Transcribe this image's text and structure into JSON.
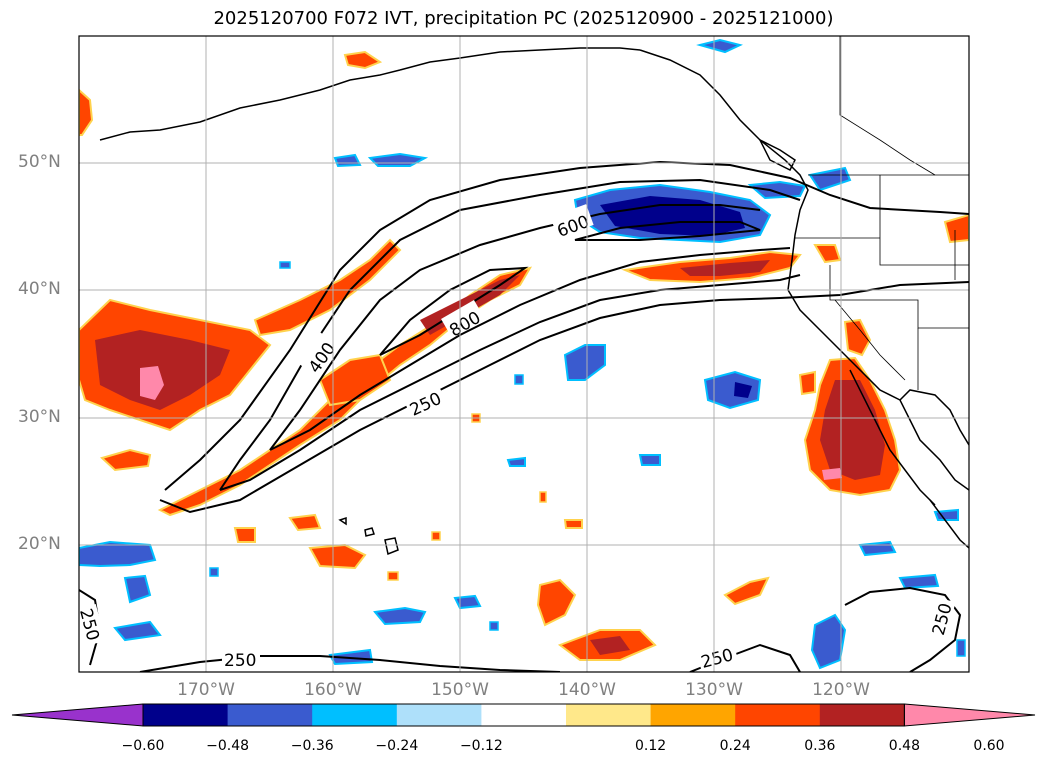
{
  "title": "2025120700 F072 IVT, precipitation PC (2025120900 - 2025121000)",
  "lat_labels": [
    "50°N",
    "40°N",
    "30°N",
    "20°N"
  ],
  "lon_labels": [
    "170°W",
    "160°W",
    "150°W",
    "140°W",
    "130°W",
    "120°W"
  ],
  "contour_labels": [
    "600",
    "800",
    "400",
    "250",
    "250",
    "250",
    "250",
    "250"
  ],
  "colorbar": {
    "tick_labels": [
      "−0.60",
      "−0.48",
      "−0.36",
      "−0.24",
      "−0.12",
      "0.12",
      "0.24",
      "0.36",
      "0.48",
      "0.60"
    ],
    "colors": [
      "#9932cc",
      "#00008b",
      "#3a5bcf",
      "#00bfff",
      "#aee0fa",
      "#ffffff",
      "#ffe88a",
      "#ffa500",
      "#ff4500",
      "#b22222",
      "#ff88aa"
    ]
  },
  "map_extent": {
    "lon": [
      -180,
      -110
    ],
    "lat": [
      10,
      60
    ]
  }
}
